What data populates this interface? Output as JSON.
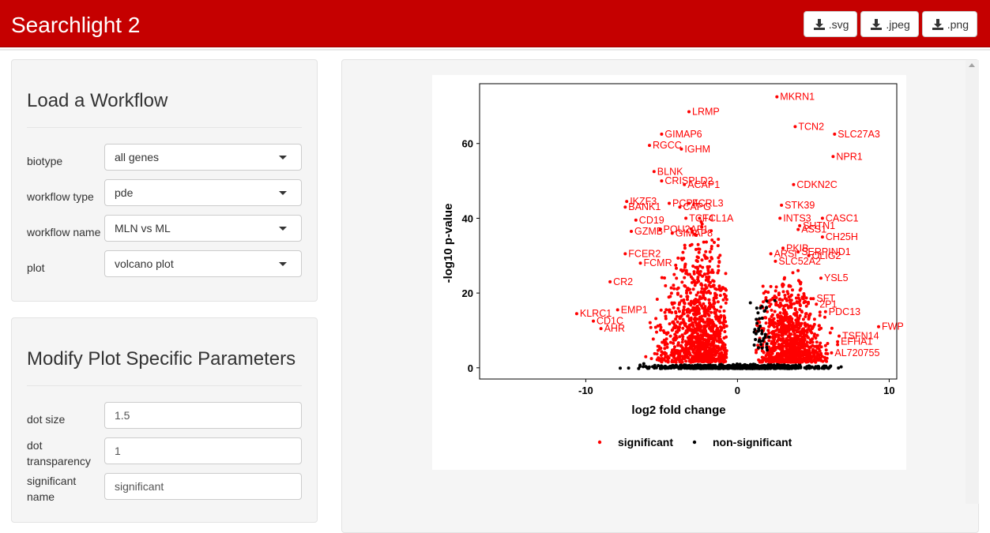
{
  "app": {
    "title": "Searchlight 2"
  },
  "downloads": [
    {
      "label": ".svg",
      "icon": "download-icon"
    },
    {
      "label": ".jpeg",
      "icon": "download-icon"
    },
    {
      "label": ".png",
      "icon": "download-icon"
    }
  ],
  "load_workflow": {
    "title": "Load a Workflow",
    "fields": [
      {
        "label": "biotype",
        "value": "all genes"
      },
      {
        "label": "workflow type",
        "value": "pde"
      },
      {
        "label": "workflow name",
        "value": "MLN vs ML"
      },
      {
        "label": "plot",
        "value": "volcano plot"
      }
    ]
  },
  "plot_params": {
    "title": "Modify Plot Specific Parameters",
    "fields": [
      {
        "label": "dot size",
        "value": "1.5"
      },
      {
        "label": "dot transparency",
        "value": "1"
      },
      {
        "label": "significant name",
        "value": "significant"
      }
    ]
  },
  "colors": {
    "significant": "#ff0000",
    "nonsignificant": "#000000",
    "navbar": "#c50000"
  },
  "chart_data": {
    "type": "scatter",
    "xlabel": "log2 fold change",
    "ylabel": "-log10 p-value",
    "xlim": [
      -17,
      10.5
    ],
    "ylim": [
      -3,
      76
    ],
    "xticks": [
      -10,
      0,
      10
    ],
    "yticks": [
      0,
      20,
      40,
      60
    ],
    "legend": {
      "position": "bottom",
      "entries": [
        "significant",
        "non-significant"
      ]
    },
    "labeled_points": [
      {
        "label": "MKRN1",
        "x": 2.6,
        "y": 72.5
      },
      {
        "label": "LRMP",
        "x": -3.2,
        "y": 68.5
      },
      {
        "label": "TCN2",
        "x": 3.8,
        "y": 64.5
      },
      {
        "label": "SLC27A3",
        "x": 6.4,
        "y": 62.5
      },
      {
        "label": "GIMAP6",
        "x": -5.0,
        "y": 62.5
      },
      {
        "label": "RGCC",
        "x": -5.8,
        "y": 59.5
      },
      {
        "label": "IGHM",
        "x": -3.7,
        "y": 58.5
      },
      {
        "label": "NPR1",
        "x": 6.3,
        "y": 56.5
      },
      {
        "label": "BLNK",
        "x": -5.5,
        "y": 52.5
      },
      {
        "label": "CRISPLD2",
        "x": -5.0,
        "y": 50.0
      },
      {
        "label": "ACAP1",
        "x": -3.5,
        "y": 49.0
      },
      {
        "label": "CDKN2C",
        "x": 3.7,
        "y": 49.0
      },
      {
        "label": "IKZF3",
        "x": -7.3,
        "y": 44.5
      },
      {
        "label": "BANK1",
        "x": -7.4,
        "y": 43.0
      },
      {
        "label": "PCP4",
        "x": -4.5,
        "y": 44.0
      },
      {
        "label": "FCRL3",
        "x": -3.2,
        "y": 44.0
      },
      {
        "label": "CAPG",
        "x": -3.8,
        "y": 43.0
      },
      {
        "label": "STK39",
        "x": 2.9,
        "y": 43.5
      },
      {
        "label": "CD19",
        "x": -6.7,
        "y": 39.5
      },
      {
        "label": "TCF4",
        "x": -3.4,
        "y": 40.0
      },
      {
        "label": "TCL1A",
        "x": -2.5,
        "y": 40.0
      },
      {
        "label": "INTS3",
        "x": 2.8,
        "y": 40.0
      },
      {
        "label": "CASC1",
        "x": 5.6,
        "y": 40.0
      },
      {
        "label": "SHTN1",
        "x": 4.1,
        "y": 38.0
      },
      {
        "label": "GZMB",
        "x": -7.0,
        "y": 36.5
      },
      {
        "label": "POU2AF1",
        "x": -5.1,
        "y": 37.0
      },
      {
        "label": "GIMAP8",
        "x": -4.3,
        "y": 36.0
      },
      {
        "label": "ASS1",
        "x": 4.0,
        "y": 37.0
      },
      {
        "label": "CH25H",
        "x": 5.6,
        "y": 35.0
      },
      {
        "label": "FCER2",
        "x": -7.4,
        "y": 30.5
      },
      {
        "label": "PKIB",
        "x": 3.0,
        "y": 32.0
      },
      {
        "label": "SERPIND1",
        "x": 4.0,
        "y": 31.0
      },
      {
        "label": "ARSI",
        "x": 2.2,
        "y": 30.5
      },
      {
        "label": "OLIG2",
        "x": 4.7,
        "y": 30.0
      },
      {
        "label": "FCMR",
        "x": -6.4,
        "y": 28.0
      },
      {
        "label": "SLC52A2",
        "x": 2.5,
        "y": 28.5
      },
      {
        "label": "CR2",
        "x": -8.4,
        "y": 23.0
      },
      {
        "label": "YSL5",
        "x": 5.5,
        "y": 24.0
      },
      {
        "label": "KLRC1",
        "x": -10.6,
        "y": 14.5
      },
      {
        "label": "CD1C",
        "x": -9.5,
        "y": 12.5
      },
      {
        "label": "EMP1",
        "x": -7.9,
        "y": 15.5
      },
      {
        "label": "AHR",
        "x": -9.0,
        "y": 10.5
      },
      {
        "label": "PDC13",
        "x": 5.8,
        "y": 15.0
      },
      {
        "label": "2P1",
        "x": 5.2,
        "y": 17.0
      },
      {
        "label": "SFT",
        "x": 5.0,
        "y": 18.5
      },
      {
        "label": "FWP",
        "x": 9.3,
        "y": 11.0
      },
      {
        "label": "EFHA1",
        "x": 6.6,
        "y": 7.0
      },
      {
        "label": "TSFN14",
        "x": 6.7,
        "y": 8.5
      },
      {
        "label": "AL720755",
        "x": 6.2,
        "y": 4.0
      }
    ]
  }
}
